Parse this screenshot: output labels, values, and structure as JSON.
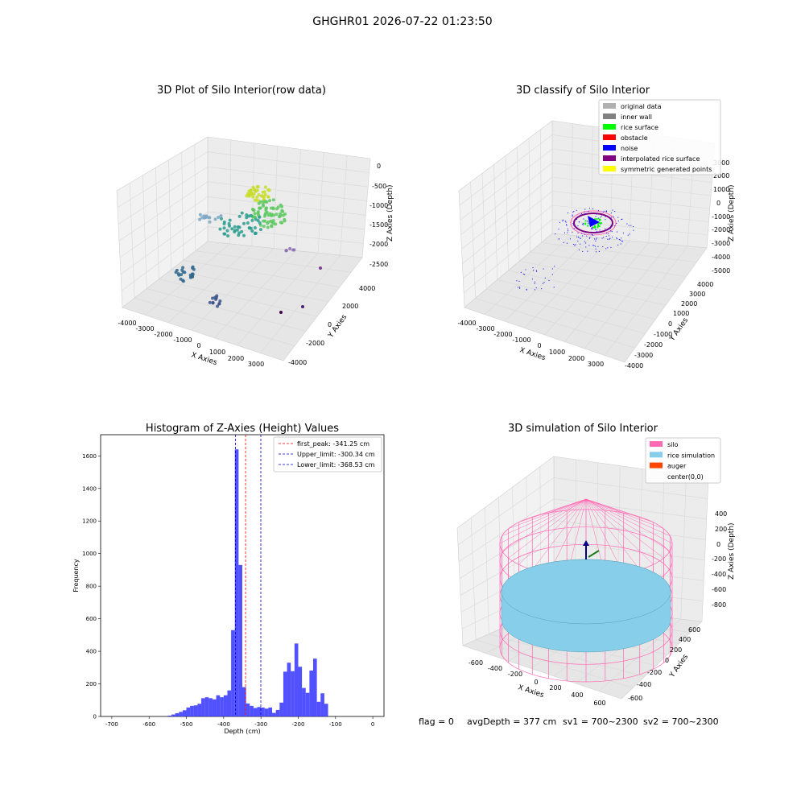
{
  "figure_title": "GHGHR01 2026-07-22 01:23:50",
  "colors": {
    "hist_bar": "#3333ff",
    "peak_line": "#ff0000",
    "limit_line": "#0000cc",
    "silo_wire": "#ff69b4",
    "rice_fill": "#87ceeb",
    "auger": "#ff4500",
    "pane_gray": "#f2f2f2",
    "noise": "#0000ff",
    "rice_surface": "#00ff00"
  },
  "panels": {
    "raw": {
      "title": "3D Plot of Silo Interior(row data)",
      "xlabel": "X Axies",
      "ylabel": "Y Axies",
      "zlabel": "Z Axies (Depth)",
      "x_ticks": [
        "-4000",
        "-3000",
        "-2000",
        "-1000",
        "0",
        "1000",
        "2000",
        "3000"
      ],
      "y_ticks": [
        "-4000",
        "-2000",
        "0",
        "2000",
        "4000"
      ],
      "z_ticks": [
        "0",
        "-500",
        "-1000",
        "-1500",
        "-2000",
        "-2500"
      ]
    },
    "classify": {
      "title": "3D classify of Silo Interior",
      "xlabel": "X Axies",
      "ylabel": "Y Axies",
      "zlabel": "Z Axies (Depth)",
      "x_ticks": [
        "-4000",
        "-3000",
        "-2000",
        "-1000",
        "0",
        "1000",
        "2000",
        "3000"
      ],
      "y_ticks": [
        "-4000",
        "-3000",
        "-2000",
        "-1000",
        "0",
        "1000",
        "2000",
        "3000",
        "4000"
      ],
      "z_ticks": [
        "3000",
        "2000",
        "1000",
        "0",
        "-1000",
        "-2000",
        "-3000",
        "-4000",
        "-5000"
      ],
      "legend": [
        {
          "label": "original data",
          "color": "#b0b0b0"
        },
        {
          "label": "inner wall",
          "color": "#808080"
        },
        {
          "label": "rice surface",
          "color": "#00ff00"
        },
        {
          "label": "obstacle",
          "color": "#ff0000"
        },
        {
          "label": "noise",
          "color": "#0000ff"
        },
        {
          "label": "interpolated rice surface",
          "color": "#800080"
        },
        {
          "label": "symmetric generated points",
          "color": "#ffff00"
        }
      ]
    },
    "simulation": {
      "title": "3D simulation of Silo Interior",
      "xlabel": "X Axies",
      "ylabel": "Y Axies",
      "zlabel": "Z Axies (Depth)",
      "x_ticks": [
        "-600",
        "-400",
        "-200",
        "0",
        "200",
        "400",
        "600"
      ],
      "y_ticks": [
        "-600",
        "-400",
        "-200",
        "0",
        "200",
        "400",
        "600"
      ],
      "z_ticks": [
        "400",
        "200",
        "0",
        "-200",
        "-400",
        "-600",
        "-800"
      ],
      "legend": [
        {
          "label": "silo",
          "color": "#ff69b4"
        },
        {
          "label": "rice simulation",
          "color": "#87ceeb"
        },
        {
          "label": "auger",
          "color": "#ff4500"
        },
        {
          "label": "center(0,0)",
          "color": ""
        }
      ]
    }
  },
  "status_line": {
    "flag": "flag = 0",
    "avg_depth": "avgDepth = 377 cm",
    "sv1": "sv1 = 700~2300",
    "sv2": "sv2 = 700~2300"
  },
  "chart_data": [
    {
      "type": "histogram",
      "title": "Histogram of Z-Axies (Height) Values",
      "xlabel": "Depth (cm)",
      "ylabel": "Frequency",
      "xlim": [
        -730,
        30
      ],
      "ylim": [
        0,
        1730
      ],
      "x_ticks": [
        -700,
        -600,
        -500,
        -400,
        -300,
        -200,
        -100,
        0
      ],
      "y_ticks": [
        0,
        200,
        400,
        600,
        800,
        1000,
        1200,
        1400,
        1600
      ],
      "bin_width": 10,
      "bins": [
        {
          "start": -550,
          "count": 5
        },
        {
          "start": -540,
          "count": 12
        },
        {
          "start": -530,
          "count": 20
        },
        {
          "start": -520,
          "count": 28
        },
        {
          "start": -510,
          "count": 38
        },
        {
          "start": -500,
          "count": 55
        },
        {
          "start": -490,
          "count": 65
        },
        {
          "start": -480,
          "count": 68
        },
        {
          "start": -470,
          "count": 78
        },
        {
          "start": -460,
          "count": 112
        },
        {
          "start": -450,
          "count": 118
        },
        {
          "start": -440,
          "count": 112
        },
        {
          "start": -430,
          "count": 105
        },
        {
          "start": -420,
          "count": 130
        },
        {
          "start": -410,
          "count": 118
        },
        {
          "start": -400,
          "count": 130
        },
        {
          "start": -390,
          "count": 160
        },
        {
          "start": -380,
          "count": 530
        },
        {
          "start": -370,
          "count": 1640
        },
        {
          "start": -360,
          "count": 930
        },
        {
          "start": -350,
          "count": 180
        },
        {
          "start": -340,
          "count": 80
        },
        {
          "start": -330,
          "count": 65
        },
        {
          "start": -320,
          "count": 52
        },
        {
          "start": -310,
          "count": 58
        },
        {
          "start": -300,
          "count": 55
        },
        {
          "start": -290,
          "count": 48
        },
        {
          "start": -280,
          "count": 55
        },
        {
          "start": -270,
          "count": 22
        },
        {
          "start": -260,
          "count": 40
        },
        {
          "start": -250,
          "count": 85
        },
        {
          "start": -240,
          "count": 275
        },
        {
          "start": -230,
          "count": 330
        },
        {
          "start": -220,
          "count": 278
        },
        {
          "start": -210,
          "count": 448
        },
        {
          "start": -200,
          "count": 305
        },
        {
          "start": -190,
          "count": 175
        },
        {
          "start": -180,
          "count": 145
        },
        {
          "start": -170,
          "count": 282
        },
        {
          "start": -160,
          "count": 355
        },
        {
          "start": -150,
          "count": 90
        },
        {
          "start": -140,
          "count": 142
        },
        {
          "start": -130,
          "count": 78
        }
      ],
      "lines": [
        {
          "label": "first_peak: -341.25 cm",
          "x": -341.25,
          "color": "#ff0000"
        },
        {
          "label": "Upper_limit: -300.34 cm",
          "x": -300.34,
          "color": "#0000cc"
        },
        {
          "label": "Lower_limit: -368.53 cm",
          "x": -368.53,
          "color": "#0000cc"
        }
      ]
    }
  ]
}
